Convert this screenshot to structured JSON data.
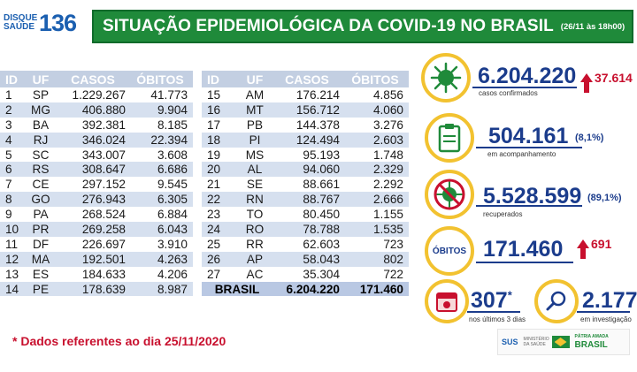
{
  "header": {
    "logo_small": "DISQUE SAÚDE",
    "logo_number": "136",
    "title": "SITUAÇÃO EPIDEMIOLÓGICA DA COVID-19 NO BRASIL",
    "date": "(26/11 às 18h00)"
  },
  "table": {
    "columns": [
      "ID",
      "UF",
      "CASOS",
      "ÓBITOS"
    ],
    "left_rows": [
      {
        "id": "1",
        "uf": "SP",
        "casos": "1.229.267",
        "obitos": "41.773"
      },
      {
        "id": "2",
        "uf": "MG",
        "casos": "406.880",
        "obitos": "9.904"
      },
      {
        "id": "3",
        "uf": "BA",
        "casos": "392.381",
        "obitos": "8.185"
      },
      {
        "id": "4",
        "uf": "RJ",
        "casos": "346.024",
        "obitos": "22.394"
      },
      {
        "id": "5",
        "uf": "SC",
        "casos": "343.007",
        "obitos": "3.608"
      },
      {
        "id": "6",
        "uf": "RS",
        "casos": "308.647",
        "obitos": "6.686"
      },
      {
        "id": "7",
        "uf": "CE",
        "casos": "297.152",
        "obitos": "9.545"
      },
      {
        "id": "8",
        "uf": "GO",
        "casos": "276.943",
        "obitos": "6.305"
      },
      {
        "id": "9",
        "uf": "PA",
        "casos": "268.524",
        "obitos": "6.884"
      },
      {
        "id": "10",
        "uf": "PR",
        "casos": "269.258",
        "obitos": "6.043"
      },
      {
        "id": "11",
        "uf": "DF",
        "casos": "226.697",
        "obitos": "3.910"
      },
      {
        "id": "12",
        "uf": "MA",
        "casos": "192.501",
        "obitos": "4.263"
      },
      {
        "id": "13",
        "uf": "ES",
        "casos": "184.633",
        "obitos": "4.206"
      },
      {
        "id": "14",
        "uf": "PE",
        "casos": "178.639",
        "obitos": "8.987"
      }
    ],
    "right_rows": [
      {
        "id": "15",
        "uf": "AM",
        "casos": "176.214",
        "obitos": "4.856"
      },
      {
        "id": "16",
        "uf": "MT",
        "casos": "156.712",
        "obitos": "4.060"
      },
      {
        "id": "17",
        "uf": "PB",
        "casos": "144.378",
        "obitos": "3.276"
      },
      {
        "id": "18",
        "uf": "PI",
        "casos": "124.494",
        "obitos": "2.603"
      },
      {
        "id": "19",
        "uf": "MS",
        "casos": "95.193",
        "obitos": "1.748"
      },
      {
        "id": "20",
        "uf": "AL",
        "casos": "94.060",
        "obitos": "2.329"
      },
      {
        "id": "21",
        "uf": "SE",
        "casos": "88.661",
        "obitos": "2.292"
      },
      {
        "id": "22",
        "uf": "RN",
        "casos": "88.767",
        "obitos": "2.666"
      },
      {
        "id": "23",
        "uf": "TO",
        "casos": "80.450",
        "obitos": "1.155"
      },
      {
        "id": "24",
        "uf": "RO",
        "casos": "78.788",
        "obitos": "1.535"
      },
      {
        "id": "25",
        "uf": "RR",
        "casos": "62.603",
        "obitos": "723"
      },
      {
        "id": "26",
        "uf": "AP",
        "casos": "58.043",
        "obitos": "802"
      },
      {
        "id": "27",
        "uf": "AC",
        "casos": "35.304",
        "obitos": "722"
      }
    ],
    "total": {
      "label": "BRASIL",
      "casos": "6.204.220",
      "obitos": "171.460"
    }
  },
  "footnote": "* Dados referentes ao dia 25/11/2020",
  "stats": {
    "confirmed": {
      "value": "6.204.220",
      "delta": "37.614",
      "label": "casos confirmados",
      "icon": "virus-icon"
    },
    "monitoring": {
      "value": "504.161",
      "pct": "(8,1%)",
      "label": "em acompanhamento",
      "icon": "clipboard-icon"
    },
    "recovered": {
      "value": "5.528.599",
      "pct": "(89,1%)",
      "label": "recuperados",
      "icon": "no-virus-icon"
    },
    "deaths": {
      "title": "ÓBITOS",
      "value": "171.460",
      "delta": "691"
    },
    "recent_deaths": {
      "value": "307",
      "star": "*",
      "label": "nos últimos 3 dias",
      "icon": "calendar-icon"
    },
    "investigating": {
      "value": "2.177",
      "label": "em investigação",
      "icon": "magnifier-icon"
    }
  },
  "gov": {
    "sus": "SUS",
    "ministry": "MINISTÉRIO DA SAÚDE",
    "brasil_small": "PÁTRIA AMADA",
    "brasil_big": "BRASIL"
  },
  "colors": {
    "accent_green": "#1f8a3a",
    "accent_blue": "#1b3c8c",
    "alert_red": "#c8102e",
    "ring_yellow": "#f2c230"
  }
}
